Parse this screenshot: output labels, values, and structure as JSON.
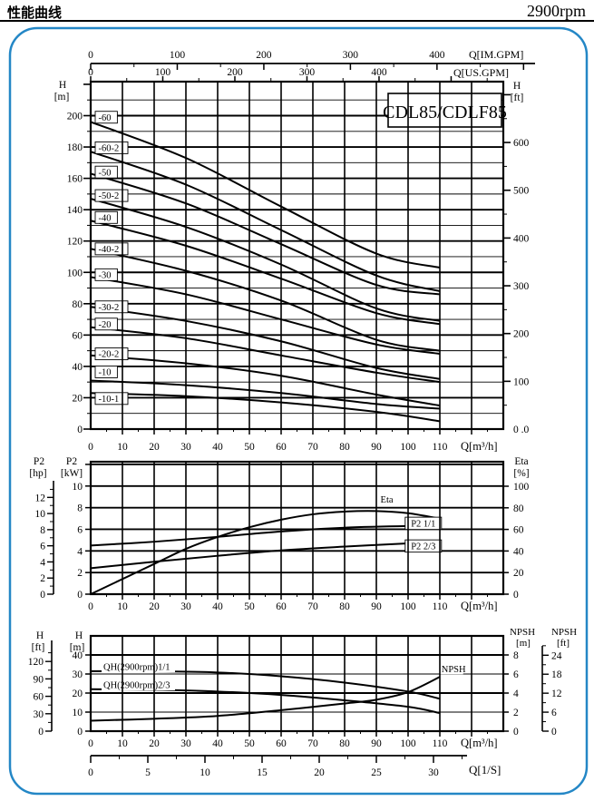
{
  "header": {
    "title_cn": "性能曲线",
    "rpm": "2900rpm"
  },
  "figure": {
    "model_title": "CDL85/CDLF85",
    "border_color": "#2487c6",
    "line_color": "#000000"
  },
  "chart_data": [
    {
      "id": "head-capacity",
      "type": "line",
      "title": "CDL85/CDLF85",
      "x": {
        "unit": "Q[m³/h]",
        "ticks": [
          0,
          10,
          20,
          30,
          40,
          50,
          60,
          70,
          80,
          90,
          100,
          110
        ],
        "max": 130,
        "grid_step": 10,
        "minor_step": 5
      },
      "y_m": {
        "h1": "H",
        "h2": "[m]",
        "ticks": [
          0,
          20,
          40,
          60,
          80,
          100,
          120,
          140,
          160,
          180,
          200
        ],
        "minor_step": 10,
        "max": 221.7
      },
      "y_ft": {
        "h1": "H",
        "h2": "[ft]",
        "ticks": [
          100,
          200,
          300,
          400,
          500,
          600
        ],
        "zero_label": "0 .0",
        "m_per_ft": 0.3048,
        "minor_step": 50,
        "tick_max": 700
      },
      "top_im": {
        "unit": "Q[IM.GPM]",
        "ticks": [
          0,
          100,
          200,
          300,
          400
        ],
        "m3h_per_unit": 0.27276,
        "minor_step": 50,
        "tick_max": 500
      },
      "top_us": {
        "unit": "Q[US.GPM]",
        "ticks": [
          0,
          100,
          200,
          300,
          400
        ],
        "m3h_per_unit": 0.22712,
        "minor_step": 50,
        "tick_max": 550
      },
      "series": [
        {
          "label": "-60",
          "label_val": 199,
          "points": [
            [
              0,
              196
            ],
            [
              30,
              173
            ],
            [
              60,
              142
            ],
            [
              90,
              112
            ],
            [
              110,
              103
            ]
          ]
        },
        {
          "label": "-60-2",
          "label_val": 179.5,
          "points": [
            [
              0,
              177
            ],
            [
              30,
              156
            ],
            [
              60,
              127
            ],
            [
              90,
              98
            ],
            [
              110,
              88
            ]
          ]
        },
        {
          "label": "-50",
          "label_val": 164,
          "points": [
            [
              0,
              163
            ],
            [
              30,
              144
            ],
            [
              60,
              118
            ],
            [
              90,
              92
            ],
            [
              110,
              86
            ]
          ]
        },
        {
          "label": "-50-2",
          "label_val": 149,
          "points": [
            [
              0,
              147
            ],
            [
              30,
              129
            ],
            [
              60,
              105
            ],
            [
              90,
              77
            ],
            [
              110,
              69
            ]
          ]
        },
        {
          "label": "-40",
          "label_val": 135,
          "points": [
            [
              0,
              133
            ],
            [
              30,
              117
            ],
            [
              60,
              96
            ],
            [
              90,
              74
            ],
            [
              110,
              67
            ]
          ]
        },
        {
          "label": "-40-2",
          "label_val": 115,
          "points": [
            [
              0,
              115
            ],
            [
              30,
              101
            ],
            [
              60,
              82
            ],
            [
              90,
              57
            ],
            [
              110,
              50
            ]
          ]
        },
        {
          "label": "-30",
          "label_val": 98.5,
          "points": [
            [
              0,
              97
            ],
            [
              30,
              86
            ],
            [
              60,
              70
            ],
            [
              90,
              54
            ],
            [
              110,
              48
            ]
          ]
        },
        {
          "label": "-30-2",
          "label_val": 78,
          "points": [
            [
              0,
              78
            ],
            [
              30,
              69
            ],
            [
              60,
              56
            ],
            [
              90,
              39
            ],
            [
              110,
              32
            ]
          ]
        },
        {
          "label": "-20",
          "label_val": 67,
          "points": [
            [
              0,
              65
            ],
            [
              30,
              58
            ],
            [
              60,
              47
            ],
            [
              90,
              36
            ],
            [
              110,
              30
            ]
          ]
        },
        {
          "label": "-20-2",
          "label_val": 48,
          "points": [
            [
              0,
              47
            ],
            [
              30,
              42
            ],
            [
              60,
              34
            ],
            [
              90,
              22
            ],
            [
              110,
              15
            ]
          ]
        },
        {
          "label": "-10",
          "label_val": 36.5,
          "points": [
            [
              0,
              31
            ],
            [
              30,
              28
            ],
            [
              60,
              23
            ],
            [
              90,
              16
            ],
            [
              110,
              13
            ]
          ]
        },
        {
          "label": "-10-1",
          "label_val": 19.5,
          "points": [
            [
              0,
              23
            ],
            [
              30,
              21
            ],
            [
              60,
              17
            ],
            [
              90,
              11
            ],
            [
              110,
              5
            ]
          ]
        }
      ]
    },
    {
      "id": "power-efficiency",
      "type": "line",
      "x": {
        "unit": "Q[m³/h]",
        "ticks": [
          0,
          10,
          20,
          30,
          40,
          50,
          60,
          70,
          80,
          90,
          100,
          110
        ],
        "max": 130,
        "grid_step": 10,
        "minor_step": 5
      },
      "y_kw": {
        "h1": "P2",
        "h2": "[kW]",
        "ticks": [
          0,
          2,
          4,
          6,
          8,
          10
        ],
        "grid_max": 12,
        "max": 12.25
      },
      "y_hp": {
        "h1": "P2",
        "h2": "[hp]",
        "ticks": [
          0,
          2,
          4,
          6,
          8,
          10,
          12
        ],
        "kw_per_hp": 0.7457,
        "minor_step": 1
      },
      "y_eta": {
        "h1": "Eta",
        "h2": "[%]",
        "ticks": [
          0,
          20,
          40,
          60,
          80,
          100
        ]
      },
      "series": [
        {
          "label": "Eta",
          "axis": "eta",
          "boxed": false,
          "label_q": 91.3,
          "label_val": 88,
          "points": [
            [
              0,
              0
            ],
            [
              10,
              14
            ],
            [
              20,
              28
            ],
            [
              30,
              42
            ],
            [
              40,
              53
            ],
            [
              50,
              62
            ],
            [
              60,
              69
            ],
            [
              70,
              74
            ],
            [
              80,
              76.5
            ],
            [
              90,
              77
            ],
            [
              100,
              75
            ],
            [
              110,
              70
            ]
          ]
        },
        {
          "label": "P2 1/1",
          "axis": "kw",
          "boxed": true,
          "label_q": 104.8,
          "label_val": 6.55,
          "points": [
            [
              0,
              4.5
            ],
            [
              20,
              4.85
            ],
            [
              40,
              5.3
            ],
            [
              60,
              5.8
            ],
            [
              80,
              6.15
            ],
            [
              100,
              6.3
            ],
            [
              110,
              6.3
            ]
          ]
        },
        {
          "label": "P2 2/3",
          "axis": "kw",
          "boxed": true,
          "label_q": 104.8,
          "label_val": 4.45,
          "points": [
            [
              0,
              2.4
            ],
            [
              20,
              3.0
            ],
            [
              40,
              3.55
            ],
            [
              60,
              4.05
            ],
            [
              80,
              4.4
            ],
            [
              100,
              4.7
            ],
            [
              110,
              4.85
            ]
          ]
        }
      ]
    },
    {
      "id": "qh-npsh",
      "type": "line",
      "x": {
        "unit": "Q[m³/h]",
        "ticks": [
          0,
          10,
          20,
          30,
          40,
          50,
          60,
          70,
          80,
          90,
          100,
          110
        ],
        "max": 130,
        "grid_step": 10,
        "minor_step": 5
      },
      "y_m": {
        "h1": "H",
        "h2": "[m]",
        "ticks": [
          0,
          10,
          20,
          30,
          40
        ],
        "max": 50
      },
      "y_ft": {
        "h1": "H",
        "h2": "[ft]",
        "ticks": [
          0,
          30,
          60,
          90,
          120
        ],
        "m_per_ft": 0.3048,
        "minor_step": 15,
        "tick_max": 135
      },
      "y_npsh_m": {
        "h1": "NPSH",
        "h2": "[m]",
        "ticks": [
          0,
          2,
          4,
          6,
          8
        ]
      },
      "y_npsh_ft": {
        "h1": "NPSH",
        "h2": "[ft]",
        "ticks": [
          0,
          6,
          12,
          18,
          24
        ],
        "minor_step": 3
      },
      "x_ls": {
        "unit": "Q[1/S]",
        "ticks": [
          0,
          5,
          10,
          15,
          20,
          25,
          30
        ],
        "m3h_per_unit": 3.6,
        "minor_step": 2.5,
        "tick_max": 32.5
      },
      "series": [
        {
          "label": "QH(2900rpm)1/1",
          "axis": "m",
          "boxed": false,
          "label_q": 4,
          "label_val": 33.8,
          "anchor": "start",
          "points": [
            [
              0,
              31.5
            ],
            [
              20,
              31.4
            ],
            [
              40,
              30.8
            ],
            [
              60,
              28.8
            ],
            [
              80,
              25.5
            ],
            [
              100,
              20.8
            ],
            [
              110,
              17
            ]
          ]
        },
        {
          "label": "QH(2900rpm)2/3",
          "axis": "m",
          "boxed": false,
          "label_q": 4,
          "label_val": 24.3,
          "anchor": "start",
          "points": [
            [
              0,
              22
            ],
            [
              20,
              21.7
            ],
            [
              40,
              20.8
            ],
            [
              60,
              19
            ],
            [
              80,
              16.2
            ],
            [
              100,
              12.8
            ],
            [
              110,
              9.5
            ]
          ]
        },
        {
          "label": "NPSH",
          "axis": "npsh",
          "boxed": false,
          "label_q": 110.5,
          "label_val": 6.55,
          "anchor": "start",
          "points": [
            [
              0,
              1.1
            ],
            [
              20,
              1.3
            ],
            [
              40,
              1.6
            ],
            [
              60,
              2.2
            ],
            [
              80,
              2.9
            ],
            [
              90,
              3.3
            ],
            [
              100,
              4.1
            ],
            [
              110,
              5.7
            ]
          ]
        }
      ]
    }
  ]
}
